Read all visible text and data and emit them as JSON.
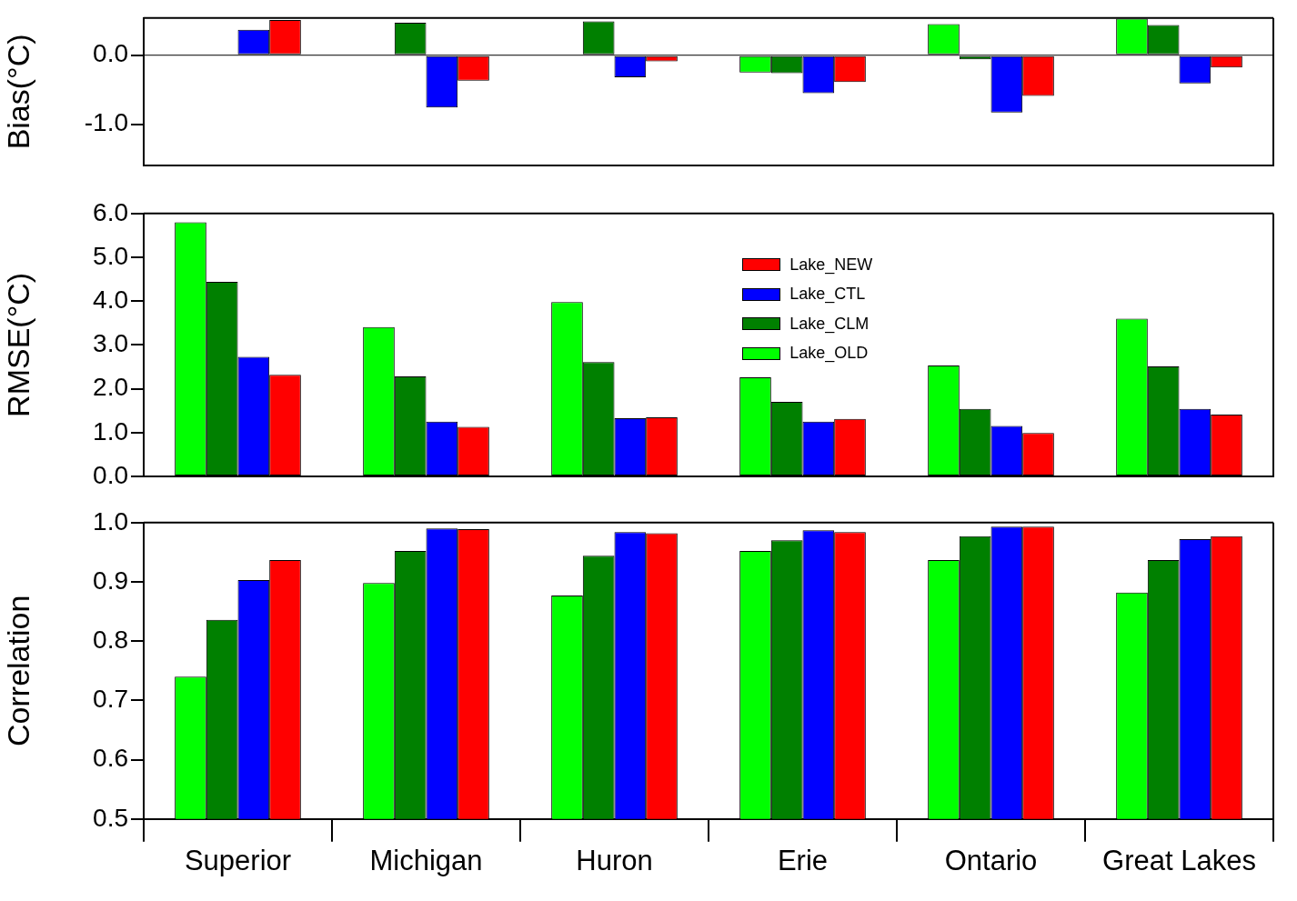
{
  "chart_data": [
    {
      "type": "bar",
      "ylabel": "Bias(°C)",
      "categories": [
        null,
        null,
        null,
        null,
        null,
        null
      ],
      "tick_labels": "y",
      "ylim": [
        -1.6,
        0.54
      ],
      "yticks": [
        {
          "value": -1,
          "label": "-1.0"
        },
        {
          "value": 0,
          "label": "0.0"
        }
      ],
      "series": [
        {
          "color": "#00ff00",
          "values": [
            null,
            null,
            null,
            -0.25,
            0.45,
            0.53
          ]
        },
        {
          "color": "#008000",
          "values": [
            null,
            0.47,
            0.49,
            -0.26,
            -0.06,
            0.44
          ]
        },
        {
          "color": "#0000ff",
          "values": [
            0.37,
            -0.76,
            -0.32,
            -0.55,
            -0.83,
            -0.41
          ]
        },
        {
          "color": "#ff0000",
          "values": [
            0.51,
            -0.37,
            -0.09,
            -0.39,
            -0.59,
            -0.18
          ]
        }
      ]
    },
    {
      "type": "bar",
      "ylabel": "RMSE(°C)",
      "categories": [
        null,
        null,
        null,
        null,
        null,
        null
      ],
      "tick_labels": "y",
      "legend": "top",
      "ylim": [
        0,
        6
      ],
      "yticks": [
        {
          "value": 0,
          "label": "0.0"
        },
        {
          "value": 1,
          "label": "1.0"
        },
        {
          "value": 2,
          "label": "2.0"
        },
        {
          "value": 3,
          "label": "3.0"
        },
        {
          "value": 4,
          "label": "4.0"
        },
        {
          "value": 5,
          "label": "5.0"
        },
        {
          "value": 6,
          "label": "6.0"
        }
      ],
      "series": [
        {
          "name": "Lake_OLD",
          "color": "#00ff00",
          "values": [
            5.8,
            3.41,
            3.98,
            2.26,
            2.53,
            3.6
          ]
        },
        {
          "name": "Lake_CLM",
          "color": "#008000",
          "values": [
            4.44,
            2.28,
            2.61,
            1.7,
            1.54,
            2.51
          ]
        },
        {
          "name": "Lake_CTL",
          "color": "#0000ff",
          "values": [
            2.73,
            1.25,
            1.33,
            1.25,
            1.15,
            1.54
          ]
        },
        {
          "name": "Lake_NEW",
          "color": "#ff0000",
          "values": [
            2.32,
            1.13,
            1.35,
            1.31,
            0.99,
            1.41
          ]
        }
      ]
    },
    {
      "type": "bar",
      "ylabel": "Correlation",
      "categories": [
        "Superior",
        "Michigan",
        "Huron",
        "Erie",
        "Ontario",
        "Great Lakes"
      ],
      "ylim": [
        0.5,
        1
      ],
      "yticks": [
        {
          "value": 0.5,
          "label": "0.5"
        },
        {
          "value": 0.6,
          "label": "0.6"
        },
        {
          "value": 0.7,
          "label": "0.7"
        },
        {
          "value": 0.8,
          "label": "0.8"
        },
        {
          "value": 0.9,
          "label": "0.9"
        },
        {
          "value": 1,
          "label": "1.0"
        }
      ],
      "series": [
        {
          "color": "#00ff00",
          "values": [
            0.74,
            0.898,
            0.877,
            0.952,
            0.937,
            0.882
          ]
        },
        {
          "color": "#008000",
          "values": [
            0.836,
            0.952,
            0.944,
            0.97,
            0.977,
            0.937
          ]
        },
        {
          "color": "#0000ff",
          "values": [
            0.903,
            0.99,
            0.984,
            0.987,
            0.993,
            0.972
          ]
        },
        {
          "color": "#ff0000",
          "values": [
            0.937,
            0.989,
            0.982,
            0.984,
            0.993,
            0.977
          ]
        }
      ]
    }
  ]
}
